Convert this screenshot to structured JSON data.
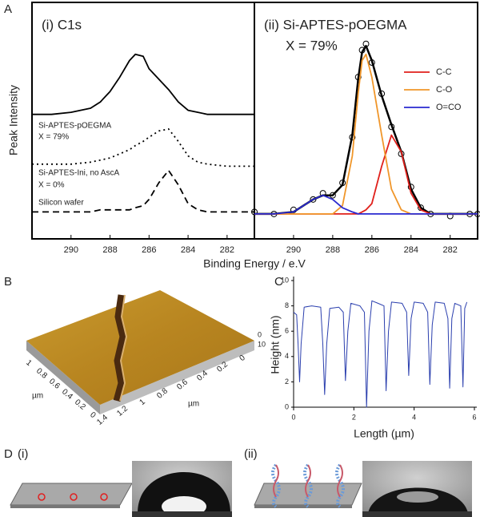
{
  "panel_labels": {
    "a": "A",
    "b": "B",
    "c": "C",
    "d": "D"
  },
  "chart_data": [
    {
      "type": "line",
      "title": "(i) C1s",
      "xlabel": "Binding Energy / e.V",
      "ylabel": "Peak Intensity",
      "annotations": [
        "Si-APTES-pOEGMA",
        "X = 79%",
        "Si-APTES-Ini, no AscA",
        "X = 0%",
        "Silicon wafer"
      ],
      "x": [
        292,
        291,
        290,
        289,
        288.5,
        288,
        287.5,
        287,
        286.7,
        286.3,
        286,
        285.5,
        285,
        284.5,
        284,
        283.5,
        283,
        282,
        281,
        280.6
      ],
      "series": [
        {
          "color": "#000000",
          "dash": "solid",
          "values": [
            60,
            60,
            61,
            63,
            66,
            71,
            78,
            86,
            89,
            88,
            82,
            77,
            72,
            66,
            62,
            61,
            60,
            60,
            60,
            60
          ]
        },
        {
          "color": "#000000",
          "dash": "dotted",
          "values": [
            36,
            36,
            36,
            37,
            38,
            39,
            41,
            43,
            45,
            47,
            49,
            52,
            53,
            47,
            40,
            37,
            36,
            35,
            35,
            35
          ]
        },
        {
          "color": "#000000",
          "dash": "dashed",
          "values": [
            13,
            13,
            13,
            13,
            14,
            14,
            14,
            14,
            15,
            16,
            19,
            27,
            33,
            26,
            17,
            14,
            13,
            13,
            13,
            13
          ]
        }
      ],
      "xlim": [
        292,
        280.6
      ],
      "ylim": [
        0,
        114
      ],
      "xticks": [
        290,
        288,
        286,
        284,
        282
      ]
    },
    {
      "type": "line",
      "title": "(ii) Si-APTES-pOEGMA",
      "subtitle": "X = 79%",
      "x": [
        292,
        291,
        290,
        289,
        288.5,
        288,
        287.5,
        287,
        286.7,
        286.5,
        286.3,
        286,
        285.5,
        285,
        284.5,
        284,
        283.5,
        283,
        282,
        281,
        280.6
      ],
      "series": [
        {
          "color": "#000000",
          "marker": "circle",
          "values": [
            13,
            12,
            14,
            19,
            22,
            21,
            27,
            49,
            78,
            91,
            94,
            85,
            70,
            54,
            41,
            25,
            15,
            12,
            11,
            12,
            12
          ]
        },
        {
          "color": "#000000",
          "dash": "solid",
          "width": 2.5,
          "values": [
            12,
            12,
            13,
            19,
            21,
            21,
            26,
            50,
            77,
            90,
            93,
            86,
            69,
            55,
            42,
            24,
            15,
            12,
            12,
            12,
            12
          ]
        },
        {
          "name": "C-C",
          "color": "#e0201b",
          "dash": "solid",
          "values": [
            12,
            12,
            12,
            12,
            12,
            12,
            12,
            12,
            12,
            13,
            14,
            17,
            35,
            50,
            42,
            22,
            14,
            12,
            12,
            12,
            12
          ]
        },
        {
          "name": "C-O",
          "color": "#f0962a",
          "dash": "solid",
          "values": [
            12,
            12,
            12,
            12,
            12,
            12,
            16,
            40,
            70,
            86,
            89,
            78,
            50,
            24,
            14,
            12,
            12,
            12,
            12,
            12,
            12
          ]
        },
        {
          "name": "O=CO",
          "color": "#2a2ad0",
          "dash": "solid",
          "values": [
            12,
            12,
            13,
            19,
            21,
            19,
            15,
            13,
            12,
            12,
            12,
            12,
            12,
            12,
            12,
            12,
            12,
            12,
            12,
            12,
            12
          ]
        }
      ],
      "xlim": [
        292,
        280.6
      ],
      "ylim": [
        0,
        114
      ],
      "xticks": [
        290,
        288,
        286,
        284,
        282
      ],
      "legend": "upper right"
    },
    {
      "type": "line",
      "xlabel": "Length (µm)",
      "ylabel": "Height (nm)",
      "x": [
        0,
        0.1,
        0.15,
        0.2,
        0.25,
        0.35,
        0.6,
        0.9,
        0.97,
        1.03,
        1.1,
        1.2,
        1.5,
        1.65,
        1.72,
        1.8,
        1.9,
        2.2,
        2.35,
        2.42,
        2.5,
        2.6,
        2.8,
        3.0,
        3.07,
        3.15,
        3.25,
        3.6,
        3.75,
        3.82,
        3.9,
        4.0,
        4.3,
        4.45,
        4.52,
        4.6,
        4.7,
        5.0,
        5.12,
        5.18,
        5.25,
        5.35,
        5.55,
        5.62,
        5.68,
        5.75
      ],
      "series": [
        {
          "color": "#2b3fae",
          "dash": "solid",
          "values": [
            7.5,
            7.3,
            5,
            2,
            5,
            7.9,
            8,
            7.9,
            5,
            1.0,
            5,
            7.8,
            7.9,
            7.5,
            2.1,
            6,
            8.2,
            8,
            7.5,
            0,
            6,
            8.4,
            8.2,
            8,
            1.3,
            6,
            8.3,
            8.2,
            7.5,
            2.5,
            7,
            8.3,
            8.2,
            7.5,
            1.8,
            6.5,
            8.3,
            8.2,
            7,
            1.5,
            7,
            8.2,
            8,
            1.6,
            7.8,
            8.3
          ]
        }
      ],
      "xlim": [
        0,
        6
      ],
      "ylim": [
        0,
        10
      ],
      "xticks": [
        0,
        2,
        4,
        6
      ],
      "yticks": [
        0,
        2,
        4,
        6,
        8,
        10
      ]
    }
  ],
  "afm": {
    "left_axis": [
      "1",
      "0.8",
      "0.6",
      "0.4",
      "0.2",
      "0"
    ],
    "left_unit": "µm",
    "front_axis": [
      "1.4",
      "1.2",
      "1",
      "0.8",
      "0.6",
      "0.4",
      "0.2",
      "0"
    ],
    "front_unit": "µm",
    "z_axis": [
      "10",
      "0"
    ]
  },
  "contact_angle": {
    "i": "(i)",
    "ii": "(ii)"
  }
}
